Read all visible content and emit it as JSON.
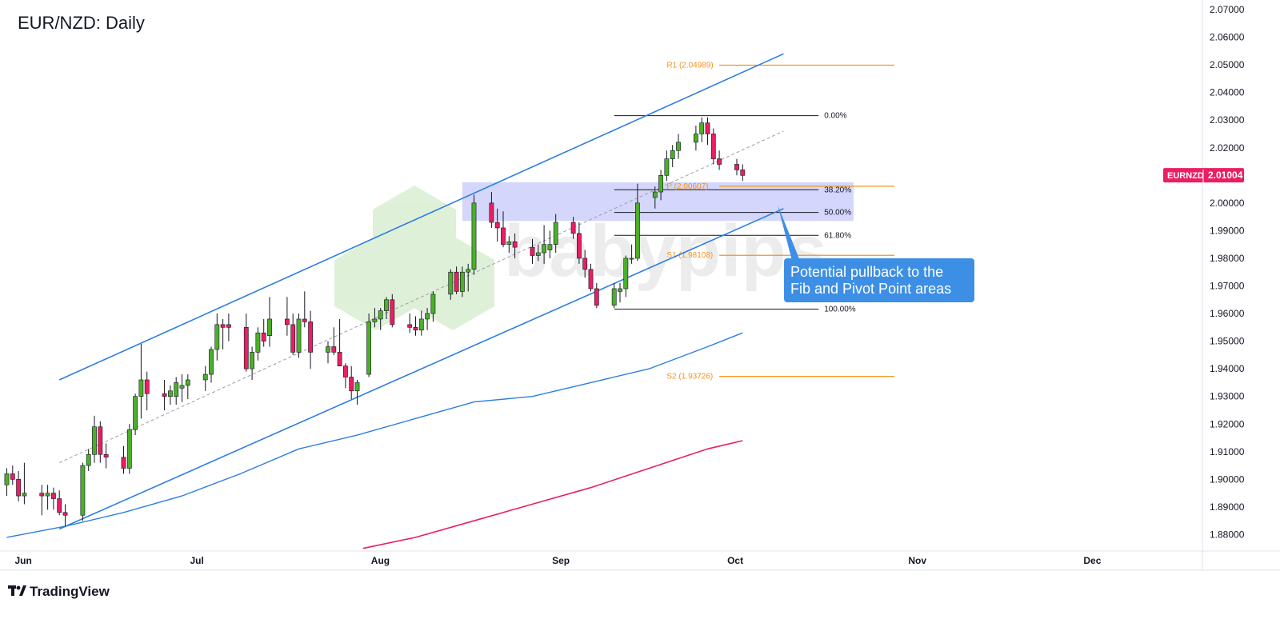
{
  "title": "EUR/NZD: Daily",
  "price_tag": {
    "symbol": "EURNZD",
    "value": "2.01004",
    "color": "#e91e63"
  },
  "watermark": "babypips",
  "branding": {
    "name": "TradingView"
  },
  "callout": {
    "line1": "Potential pullback to the",
    "line2": "Fib and Pivot Point areas",
    "color": "#3d8fe6"
  },
  "colors": {
    "up": "#4caf2a",
    "down": "#e91e63",
    "channel": "#2d7ee0",
    "ma_fast": "#2d7ee0",
    "ma_slow": "#e91e63",
    "pivot": "#f7931a",
    "zone": "#b0b7f7"
  },
  "chart_data": {
    "type": "candlestick",
    "title": "EUR/NZD: Daily",
    "ylim": [
      1.875,
      2.07
    ],
    "y_ticks": [
      "2.07000",
      "2.06000",
      "2.05000",
      "2.04000",
      "2.03000",
      "2.02000",
      "2.01000",
      "2.00000",
      "1.99000",
      "1.98000",
      "1.97000",
      "1.96000",
      "1.95000",
      "1.94000",
      "1.93000",
      "1.92000",
      "1.91000",
      "1.90000",
      "1.89000",
      "1.88000"
    ],
    "x_ticks": [
      {
        "label": "Jun",
        "day": 0
      },
      {
        "label": "Jul",
        "day": 30
      },
      {
        "label": "Aug",
        "day": 61
      },
      {
        "label": "Sep",
        "day": 92
      },
      {
        "label": "Oct",
        "day": 122
      },
      {
        "label": "Nov",
        "day": 153
      },
      {
        "label": "Dec",
        "day": 183
      }
    ],
    "candles": [
      {
        "day": 0,
        "o": 1.898,
        "h": 1.904,
        "l": 1.894,
        "c": 1.902
      },
      {
        "day": 1,
        "o": 1.902,
        "h": 1.905,
        "l": 1.898,
        "c": 1.9
      },
      {
        "day": 2,
        "o": 1.9,
        "h": 1.903,
        "l": 1.892,
        "c": 1.894
      },
      {
        "day": 3,
        "o": 1.894,
        "h": 1.906,
        "l": 1.891,
        "c": 1.895
      },
      {
        "day": 6,
        "o": 1.895,
        "h": 1.898,
        "l": 1.887,
        "c": 1.894
      },
      {
        "day": 7,
        "o": 1.894,
        "h": 1.898,
        "l": 1.889,
        "c": 1.895
      },
      {
        "day": 8,
        "o": 1.895,
        "h": 1.897,
        "l": 1.889,
        "c": 1.893
      },
      {
        "day": 9,
        "o": 1.893,
        "h": 1.896,
        "l": 1.887,
        "c": 1.888
      },
      {
        "day": 10,
        "o": 1.888,
        "h": 1.891,
        "l": 1.883,
        "c": 1.887
      },
      {
        "day": 13,
        "o": 1.887,
        "h": 1.906,
        "l": 1.885,
        "c": 1.905
      },
      {
        "day": 14,
        "o": 1.905,
        "h": 1.911,
        "l": 1.903,
        "c": 1.909
      },
      {
        "day": 15,
        "o": 1.909,
        "h": 1.923,
        "l": 1.906,
        "c": 1.919
      },
      {
        "day": 16,
        "o": 1.919,
        "h": 1.921,
        "l": 1.906,
        "c": 1.909
      },
      {
        "day": 17,
        "o": 1.909,
        "h": 1.913,
        "l": 1.904,
        "c": 1.908
      },
      {
        "day": 20,
        "o": 1.908,
        "h": 1.912,
        "l": 1.902,
        "c": 1.904
      },
      {
        "day": 21,
        "o": 1.904,
        "h": 1.92,
        "l": 1.902,
        "c": 1.918
      },
      {
        "day": 22,
        "o": 1.918,
        "h": 1.931,
        "l": 1.916,
        "c": 1.93
      },
      {
        "day": 23,
        "o": 1.93,
        "h": 1.949,
        "l": 1.922,
        "c": 1.936
      },
      {
        "day": 24,
        "o": 1.936,
        "h": 1.939,
        "l": 1.925,
        "c": 1.931
      },
      {
        "day": 27,
        "o": 1.931,
        "h": 1.936,
        "l": 1.925,
        "c": 1.93
      },
      {
        "day": 28,
        "o": 1.93,
        "h": 1.934,
        "l": 1.927,
        "c": 1.932
      },
      {
        "day": 29,
        "o": 1.93,
        "h": 1.937,
        "l": 1.927,
        "c": 1.935
      },
      {
        "day": 30,
        "o": 1.933,
        "h": 1.938,
        "l": 1.928,
        "c": 1.934
      },
      {
        "day": 31,
        "o": 1.934,
        "h": 1.938,
        "l": 1.929,
        "c": 1.936
      },
      {
        "day": 34,
        "o": 1.936,
        "h": 1.941,
        "l": 1.932,
        "c": 1.938
      },
      {
        "day": 35,
        "o": 1.938,
        "h": 1.948,
        "l": 1.935,
        "c": 1.947
      },
      {
        "day": 36,
        "o": 1.947,
        "h": 1.96,
        "l": 1.943,
        "c": 1.956
      },
      {
        "day": 37,
        "o": 1.956,
        "h": 1.958,
        "l": 1.947,
        "c": 1.955
      },
      {
        "day": 38,
        "o": 1.956,
        "h": 1.96,
        "l": 1.95,
        "c": 1.955
      },
      {
        "day": 41,
        "o": 1.955,
        "h": 1.96,
        "l": 1.939,
        "c": 1.94
      },
      {
        "day": 42,
        "o": 1.94,
        "h": 1.948,
        "l": 1.936,
        "c": 1.946
      },
      {
        "day": 43,
        "o": 1.946,
        "h": 1.955,
        "l": 1.943,
        "c": 1.953
      },
      {
        "day": 44,
        "o": 1.953,
        "h": 1.958,
        "l": 1.948,
        "c": 1.95
      },
      {
        "day": 45,
        "o": 1.952,
        "h": 1.966,
        "l": 1.948,
        "c": 1.958
      },
      {
        "day": 48,
        "o": 1.958,
        "h": 1.966,
        "l": 1.952,
        "c": 1.956
      },
      {
        "day": 49,
        "o": 1.956,
        "h": 1.96,
        "l": 1.945,
        "c": 1.946
      },
      {
        "day": 50,
        "o": 1.946,
        "h": 1.96,
        "l": 1.944,
        "c": 1.958
      },
      {
        "day": 51,
        "o": 1.958,
        "h": 1.968,
        "l": 1.955,
        "c": 1.957
      },
      {
        "day": 52,
        "o": 1.957,
        "h": 1.961,
        "l": 1.94,
        "c": 1.946
      },
      {
        "day": 55,
        "o": 1.946,
        "h": 1.95,
        "l": 1.942,
        "c": 1.948
      },
      {
        "day": 56,
        "o": 1.948,
        "h": 1.955,
        "l": 1.945,
        "c": 1.946
      },
      {
        "day": 57,
        "o": 1.946,
        "h": 1.958,
        "l": 1.942,
        "c": 1.941
      },
      {
        "day": 58,
        "o": 1.941,
        "h": 1.942,
        "l": 1.933,
        "c": 1.937
      },
      {
        "day": 59,
        "o": 1.937,
        "h": 1.941,
        "l": 1.929,
        "c": 1.932
      },
      {
        "day": 60,
        "o": 1.932,
        "h": 1.936,
        "l": 1.927,
        "c": 1.935
      },
      {
        "day": 62,
        "o": 1.938,
        "h": 1.96,
        "l": 1.937,
        "c": 1.957
      },
      {
        "day": 63,
        "o": 1.957,
        "h": 1.962,
        "l": 1.955,
        "c": 1.958
      },
      {
        "day": 64,
        "o": 1.958,
        "h": 1.962,
        "l": 1.954,
        "c": 1.961
      },
      {
        "day": 65,
        "o": 1.961,
        "h": 1.966,
        "l": 1.958,
        "c": 1.965
      },
      {
        "day": 66,
        "o": 1.965,
        "h": 1.967,
        "l": 1.955,
        "c": 1.956
      },
      {
        "day": 69,
        "o": 1.956,
        "h": 1.96,
        "l": 1.953,
        "c": 1.955
      },
      {
        "day": 70,
        "o": 1.955,
        "h": 1.959,
        "l": 1.952,
        "c": 1.954
      },
      {
        "day": 71,
        "o": 1.954,
        "h": 1.961,
        "l": 1.952,
        "c": 1.958
      },
      {
        "day": 72,
        "o": 1.958,
        "h": 1.962,
        "l": 1.954,
        "c": 1.96
      },
      {
        "day": 73,
        "o": 1.96,
        "h": 1.968,
        "l": 1.957,
        "c": 1.967
      },
      {
        "day": 76,
        "o": 1.967,
        "h": 1.976,
        "l": 1.965,
        "c": 1.975
      },
      {
        "day": 77,
        "o": 1.975,
        "h": 1.977,
        "l": 1.967,
        "c": 1.968
      },
      {
        "day": 78,
        "o": 1.968,
        "h": 1.977,
        "l": 1.966,
        "c": 1.975
      },
      {
        "day": 79,
        "o": 1.975,
        "h": 1.978,
        "l": 1.968,
        "c": 1.976
      },
      {
        "day": 80,
        "o": 1.976,
        "h": 2.003,
        "l": 1.974,
        "c": 2.0
      },
      {
        "day": 83,
        "o": 2.0,
        "h": 2.004,
        "l": 1.991,
        "c": 1.993
      },
      {
        "day": 84,
        "o": 1.993,
        "h": 1.998,
        "l": 1.986,
        "c": 1.991
      },
      {
        "day": 85,
        "o": 1.991,
        "h": 1.997,
        "l": 1.984,
        "c": 1.985
      },
      {
        "day": 86,
        "o": 1.985,
        "h": 1.988,
        "l": 1.982,
        "c": 1.986
      },
      {
        "day": 87,
        "o": 1.986,
        "h": 1.989,
        "l": 1.98,
        "c": 1.984
      },
      {
        "day": 90,
        "o": 1.984,
        "h": 1.987,
        "l": 1.978,
        "c": 1.981
      },
      {
        "day": 91,
        "o": 1.981,
        "h": 1.985,
        "l": 1.979,
        "c": 1.982
      },
      {
        "day": 92,
        "o": 1.982,
        "h": 1.992,
        "l": 1.978,
        "c": 1.985
      },
      {
        "day": 93,
        "o": 1.983,
        "h": 1.99,
        "l": 1.98,
        "c": 1.985
      },
      {
        "day": 94,
        "o": 1.985,
        "h": 1.996,
        "l": 1.982,
        "c": 1.993
      },
      {
        "day": 97,
        "o": 1.993,
        "h": 1.995,
        "l": 1.987,
        "c": 1.989
      },
      {
        "day": 98,
        "o": 1.989,
        "h": 1.993,
        "l": 1.978,
        "c": 1.98
      },
      {
        "day": 99,
        "o": 1.98,
        "h": 1.983,
        "l": 1.973,
        "c": 1.976
      },
      {
        "day": 100,
        "o": 1.976,
        "h": 1.978,
        "l": 1.968,
        "c": 1.969
      },
      {
        "day": 101,
        "o": 1.969,
        "h": 1.971,
        "l": 1.962,
        "c": 1.963
      },
      {
        "day": 104,
        "o": 1.963,
        "h": 1.971,
        "l": 1.962,
        "c": 1.969
      },
      {
        "day": 105,
        "o": 1.968,
        "h": 1.971,
        "l": 1.964,
        "c": 1.969
      },
      {
        "day": 106,
        "o": 1.969,
        "h": 1.981,
        "l": 1.966,
        "c": 1.98
      },
      {
        "day": 107,
        "o": 1.98,
        "h": 1.985,
        "l": 1.978,
        "c": 1.98
      },
      {
        "day": 108,
        "o": 1.98,
        "h": 2.007,
        "l": 1.979,
        "c": 2.0
      },
      {
        "day": 111,
        "o": 2.002,
        "h": 2.006,
        "l": 1.998,
        "c": 2.004
      },
      {
        "day": 112,
        "o": 2.004,
        "h": 2.012,
        "l": 2.001,
        "c": 2.01
      },
      {
        "day": 113,
        "o": 2.01,
        "h": 2.019,
        "l": 2.008,
        "c": 2.016
      },
      {
        "day": 114,
        "o": 2.016,
        "h": 2.021,
        "l": 2.013,
        "c": 2.019
      },
      {
        "day": 115,
        "o": 2.019,
        "h": 2.025,
        "l": 2.016,
        "c": 2.022
      },
      {
        "day": 118,
        "o": 2.022,
        "h": 2.028,
        "l": 2.019,
        "c": 2.025
      },
      {
        "day": 119,
        "o": 2.025,
        "h": 2.031,
        "l": 2.022,
        "c": 2.029
      },
      {
        "day": 120,
        "o": 2.029,
        "h": 2.031,
        "l": 2.021,
        "c": 2.025
      },
      {
        "day": 121,
        "o": 2.025,
        "h": 2.027,
        "l": 2.014,
        "c": 2.016
      },
      {
        "day": 122,
        "o": 2.016,
        "h": 2.019,
        "l": 2.012,
        "c": 2.014
      },
      {
        "day": 125,
        "o": 2.014,
        "h": 2.016,
        "l": 2.01,
        "c": 2.012
      },
      {
        "day": 126,
        "o": 2.012,
        "h": 2.014,
        "l": 2.008,
        "c": 2.01
      }
    ],
    "ma_fast": [
      [
        0,
        1.879
      ],
      [
        10,
        1.883
      ],
      [
        20,
        1.888
      ],
      [
        30,
        1.894
      ],
      [
        40,
        1.902
      ],
      [
        50,
        1.911
      ],
      [
        60,
        1.916
      ],
      [
        70,
        1.922
      ],
      [
        80,
        1.928
      ],
      [
        90,
        1.93
      ],
      [
        100,
        1.935
      ],
      [
        110,
        1.94
      ],
      [
        120,
        1.948
      ],
      [
        126,
        1.953
      ]
    ],
    "ma_slow": [
      [
        61,
        1.875
      ],
      [
        70,
        1.879
      ],
      [
        80,
        1.885
      ],
      [
        90,
        1.891
      ],
      [
        100,
        1.897
      ],
      [
        110,
        1.904
      ],
      [
        120,
        1.911
      ],
      [
        126,
        1.914
      ]
    ],
    "channel_upper": [
      [
        9,
        1.936
      ],
      [
        133,
        2.054
      ]
    ],
    "channel_lower": [
      [
        9,
        1.882
      ],
      [
        133,
        1.998
      ]
    ],
    "midline": [
      [
        9,
        1.906
      ],
      [
        133,
        2.026
      ]
    ],
    "fib_levels": [
      {
        "label": "0.00%",
        "value": 2.0316
      },
      {
        "label": "38.20%",
        "value": 2.0048
      },
      {
        "label": "50.00%",
        "value": 1.9966
      },
      {
        "label": "61.80%",
        "value": 1.9883
      },
      {
        "label": "100.00%",
        "value": 1.9616
      }
    ],
    "fib_range_days": [
      104,
      139
    ],
    "pivots": [
      {
        "label": "R1 (2.04989)",
        "value": 2.04989
      },
      {
        "label": "P (2.00607)",
        "value": 2.00607
      },
      {
        "label": "S1 (1.98108)",
        "value": 1.98108
      },
      {
        "label": "S2 (1.93726)",
        "value": 1.93726
      }
    ],
    "pivot_label_day": 113,
    "pivot_line_days": [
      122,
      152
    ],
    "zone": {
      "day_start": 78,
      "day_end": 145,
      "y_low": 1.9935,
      "y_high": 2.0075
    },
    "last_price": 2.01004
  }
}
